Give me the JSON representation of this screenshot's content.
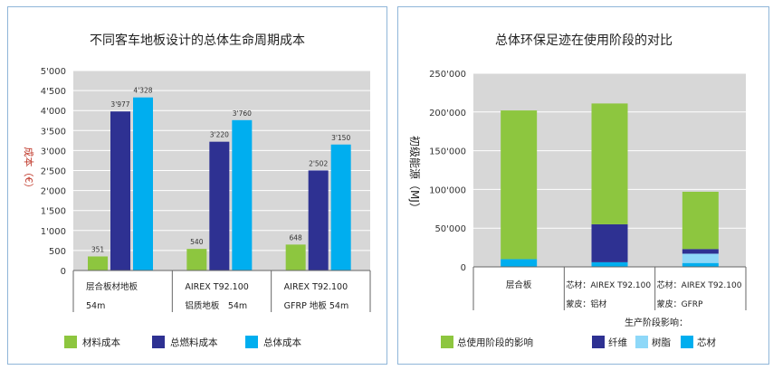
{
  "charts": [
    {
      "type": "bar",
      "title": "不同客车地板设计的总体生命周期成本",
      "ylabel": "成本（€）",
      "ylim": [
        0,
        5000
      ],
      "yticks": [
        "0",
        "500",
        "1'000",
        "1'500",
        "2'000",
        "2'500",
        "3'000",
        "3'500",
        "4'000",
        "4'500",
        "5'000"
      ],
      "categories": [
        [
          "层合板材地板",
          "54m"
        ],
        [
          "AIREX T92.100",
          "铝质地板　54m"
        ],
        [
          "AIREX T92.100",
          "GFRP 地板 54m"
        ]
      ],
      "series": [
        {
          "name": "材料成本",
          "color": "#8dc63f",
          "values": [
            351,
            540,
            648
          ],
          "labels": [
            "351",
            "540",
            "648"
          ]
        },
        {
          "name": "总燃料成本",
          "color": "#2e3192",
          "values": [
            3977,
            3220,
            2502
          ],
          "labels": [
            "3'977",
            "3'220",
            "2'502"
          ]
        },
        {
          "name": "总体成本",
          "color": "#00aeef",
          "values": [
            4328,
            3760,
            3150
          ],
          "labels": [
            "4'328",
            "3'760",
            "3'150"
          ]
        }
      ],
      "grid": true,
      "legend": "bottom"
    },
    {
      "type": "bar",
      "title": "总体环保足迹在使用阶段的对比",
      "ylabel": "初级能源（MJ）",
      "ylim": [
        0,
        250000
      ],
      "yticks": [
        "0",
        "50'000",
        "100'000",
        "150'000",
        "200'000",
        "250'000"
      ],
      "categories": [
        [
          "层合板"
        ],
        [
          "芯材：AIREX T92.100",
          "蒙皮：铝材"
        ],
        [
          "芯材：AIREX T92.100",
          "蒙皮：GFRP"
        ]
      ],
      "stack_series": [
        {
          "name": "芯材",
          "color": "#00aeef",
          "values": [
            10000,
            6000,
            5000
          ]
        },
        {
          "name": "树脂",
          "color": "#8ed8f8",
          "values": [
            0,
            0,
            12000
          ]
        },
        {
          "name": "纤维",
          "color": "#2e3192",
          "values": [
            0,
            49000,
            6000
          ]
        },
        {
          "name": "总使用阶段的影响",
          "color": "#8dc63f",
          "values": [
            192000,
            156000,
            74000
          ]
        }
      ],
      "legend_caption": "生产阶段影响：",
      "legend_order": [
        "总使用阶段的影响",
        "纤维",
        "树脂",
        "芯材"
      ],
      "grid": true,
      "legend": "bottom"
    }
  ]
}
